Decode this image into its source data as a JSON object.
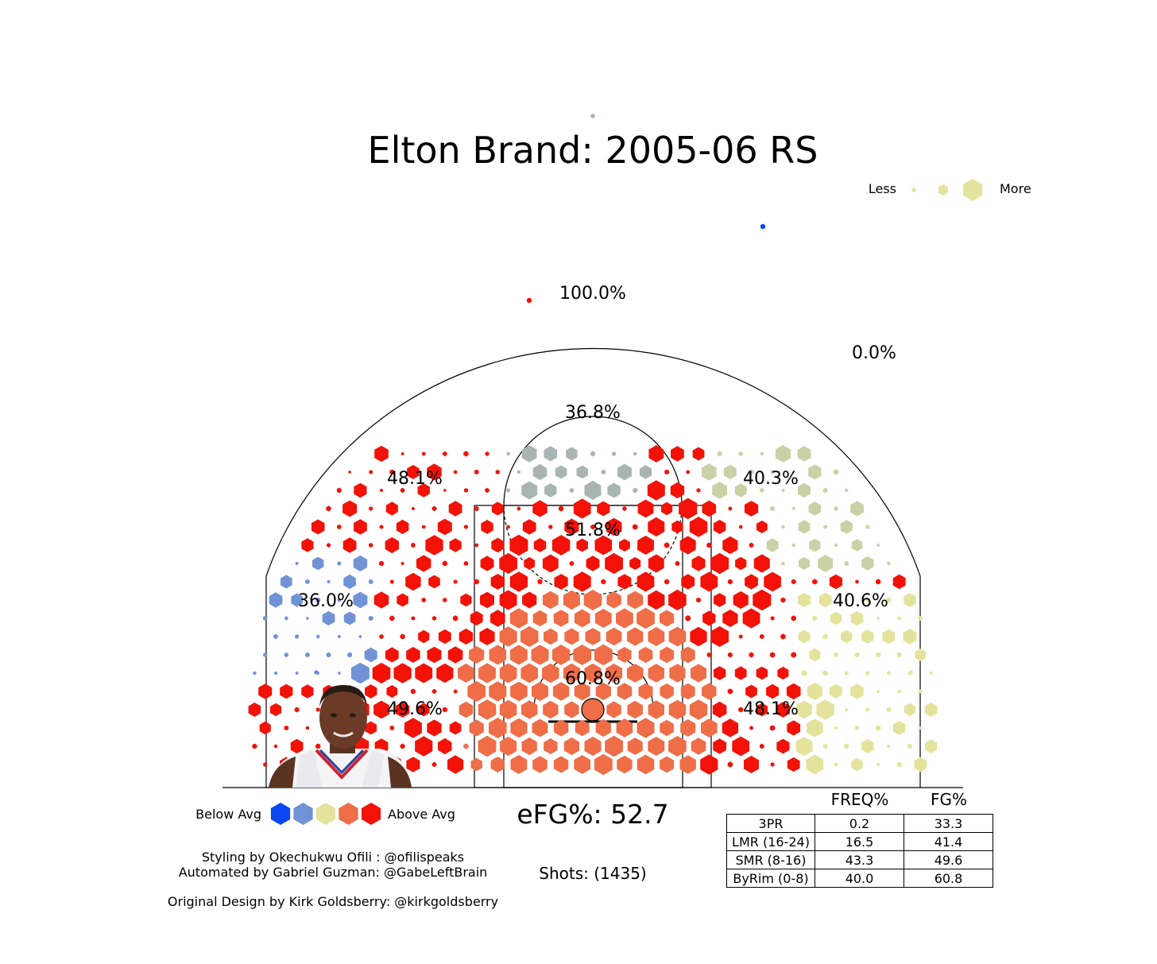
{
  "title": "Elton Brand: 2005-06 RS",
  "size_legend": {
    "less": "Less",
    "more": "More",
    "color": "#e4e39d"
  },
  "color_legend": {
    "below": "Below Avg",
    "above": "Above Avg",
    "colors": [
      "#0a47f0",
      "#7193d6",
      "#e4e39d",
      "#ef6d47",
      "#f21208"
    ]
  },
  "efg": "eFG%: 52.7",
  "shots": "Shots: (1435)",
  "credits": {
    "styling": "Styling by Okechukwu Ofili : @ofilispeaks",
    "automated": "Automated by Gabriel Guzman: @GabeLeftBrain",
    "original": "Original Design by Kirk Goldsberry: @kirkgoldsberry"
  },
  "photo_icon": "player-headshot",
  "chart_data": {
    "type": "hexbin",
    "title": "Elton Brand: 2005-06 RS",
    "zones": [
      {
        "name": "backcourt-high",
        "fg": "100.0%"
      },
      {
        "name": "backcourt-right",
        "fg": "0.0%"
      },
      {
        "name": "top-three",
        "fg": "36.8%"
      },
      {
        "name": "left-wing-three",
        "fg": "48.1%"
      },
      {
        "name": "right-wing-three",
        "fg": "40.3%"
      },
      {
        "name": "left-corner-three",
        "fg": "36.0%"
      },
      {
        "name": "right-corner-three",
        "fg": "40.6%"
      },
      {
        "name": "free-throw",
        "fg": "51.8%"
      },
      {
        "name": "restricted-area",
        "fg": "60.8%"
      },
      {
        "name": "left-baseline",
        "fg": "49.6%"
      },
      {
        "name": "right-baseline",
        "fg": "48.1%"
      }
    ],
    "table": {
      "columns": [
        "",
        "FREQ%",
        "FG%"
      ],
      "rows": [
        {
          "label": "3PR",
          "freq": "0.2",
          "fg": "33.3"
        },
        {
          "label": "LMR (16-24)",
          "freq": "16.5",
          "fg": "41.4"
        },
        {
          "label": "SMR (8-16)",
          "freq": "43.3",
          "fg": "49.6"
        },
        {
          "label": "ByRim (0-8)",
          "freq": "40.0",
          "fg": "60.8"
        }
      ]
    }
  }
}
